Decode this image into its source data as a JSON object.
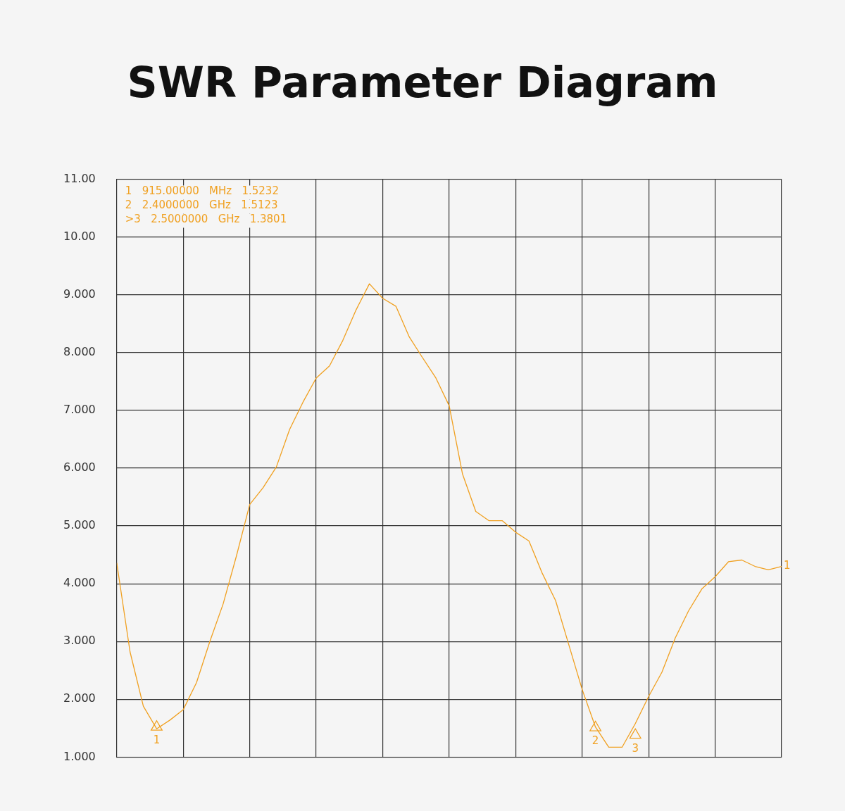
{
  "chart_data": {
    "type": "line",
    "title": "SWR Parameter Diagram",
    "categories": [
      null,
      null,
      null,
      null,
      null,
      null,
      null,
      null,
      null,
      null,
      null,
      null,
      null,
      null,
      null,
      null,
      null,
      null,
      null,
      null,
      null,
      null,
      null,
      null,
      null,
      null,
      null,
      null,
      null,
      null,
      null,
      null,
      null,
      null,
      null,
      null,
      null,
      null,
      null,
      null,
      null,
      null,
      null,
      null,
      null,
      null,
      null,
      null,
      null,
      null,
      null
    ],
    "series": [
      {
        "name": "1",
        "color": "#f0a020",
        "values": [
          4.36,
          2.82,
          1.88,
          1.49,
          1.64,
          1.82,
          2.29,
          3.0,
          3.65,
          4.48,
          5.37,
          5.66,
          6.02,
          6.67,
          7.14,
          7.56,
          7.77,
          8.21,
          8.74,
          9.19,
          8.94,
          8.8,
          8.27,
          7.91,
          7.56,
          7.08,
          5.9,
          5.25,
          5.09,
          5.09,
          4.89,
          4.74,
          4.18,
          3.71,
          2.94,
          2.17,
          1.52,
          1.17,
          1.17,
          1.58,
          2.05,
          2.47,
          3.06,
          3.53,
          3.91,
          4.12,
          4.38,
          4.41,
          4.3,
          4.24,
          4.3
        ]
      },
      {
        "name": "1",
        "type": "scatter",
        "color": "#f0a020",
        "marker": "triangle",
        "values": [
          null,
          null,
          null,
          1.52,
          null,
          null,
          null,
          null,
          null,
          null,
          null,
          null,
          null,
          null,
          null,
          null,
          null,
          null,
          null,
          null,
          null,
          null,
          null,
          null,
          null,
          null,
          null,
          null,
          null,
          null,
          null,
          null,
          null,
          null,
          null,
          null,
          null,
          null,
          null,
          null,
          null,
          null,
          null,
          null,
          null,
          null,
          null,
          null,
          null,
          null,
          null
        ]
      },
      {
        "name": "2",
        "type": "scatter",
        "color": "#f0a020",
        "marker": "triangle",
        "values": [
          null,
          null,
          null,
          null,
          null,
          null,
          null,
          null,
          null,
          null,
          null,
          null,
          null,
          null,
          null,
          null,
          null,
          null,
          null,
          null,
          null,
          null,
          null,
          null,
          null,
          null,
          null,
          null,
          null,
          null,
          null,
          null,
          null,
          null,
          null,
          null,
          1.51,
          null,
          null,
          null,
          null,
          null,
          null,
          null,
          null,
          null,
          null,
          null,
          null,
          null,
          null
        ]
      },
      {
        "name": "3",
        "type": "scatter",
        "color": "#f0a020",
        "marker": "triangle",
        "values": [
          null,
          null,
          null,
          null,
          null,
          null,
          null,
          null,
          null,
          null,
          null,
          null,
          null,
          null,
          null,
          null,
          null,
          null,
          null,
          null,
          null,
          null,
          null,
          null,
          null,
          null,
          null,
          null,
          null,
          null,
          null,
          null,
          null,
          null,
          null,
          null,
          null,
          null,
          null,
          1.38,
          null,
          null,
          null,
          null,
          null,
          null,
          null,
          null,
          null,
          null,
          null
        ]
      }
    ],
    "ylim": [
      1,
      11
    ],
    "yticks": [
      {
        "value": 1,
        "label": "1.000"
      },
      {
        "value": 2,
        "label": "2.000"
      },
      {
        "value": 3,
        "label": "3.000"
      },
      {
        "value": 4,
        "label": "4.000"
      },
      {
        "value": 5,
        "label": "5.000"
      },
      {
        "value": 6,
        "label": "6.000"
      },
      {
        "value": 7,
        "label": "7.000"
      },
      {
        "value": 8,
        "label": "8.000"
      },
      {
        "value": 9,
        "label": "9.000"
      },
      {
        "value": 10,
        "label": "10.00"
      },
      {
        "value": 11,
        "label": "11.00"
      }
    ],
    "tick_labels": "y",
    "grid": true,
    "legend": false,
    "annotations": [
      "1   915.00000   MHz   1.5232",
      "2   2.4000000   GHz   1.5123",
      ">3   2.5000000   GHz   1.3801"
    ]
  }
}
